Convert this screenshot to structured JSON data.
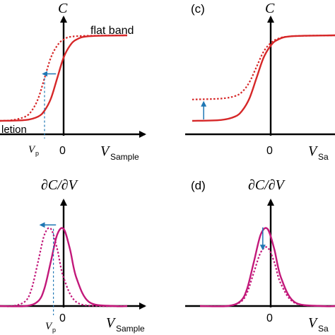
{
  "chart_data": [
    {
      "panel": "a",
      "panel_label": "",
      "type": "line",
      "ylabel": "C",
      "xlabel_symbol": "V",
      "xlabel_sub": "Sample",
      "zero_tick": "0",
      "annotations": {
        "top_right": "flat band",
        "bottom_left": "letion",
        "marker": "V",
        "marker_sub": "p"
      },
      "xlim": [
        -1,
        1
      ],
      "ylim": [
        0,
        1
      ],
      "series": [
        {
          "style": "solid",
          "color": "#d62728",
          "x": [
            -1.0,
            -0.6,
            -0.4,
            -0.3,
            -0.2,
            -0.1,
            0.0,
            0.1,
            0.2,
            0.4,
            1.0
          ],
          "y": [
            0.0,
            0.01,
            0.05,
            0.12,
            0.26,
            0.5,
            0.74,
            0.88,
            0.95,
            0.99,
            1.0
          ]
        },
        {
          "style": "dotted",
          "color": "#d62728",
          "x": [
            -1.0,
            -0.8,
            -0.6,
            -0.5,
            -0.4,
            -0.3,
            -0.2,
            -0.1,
            0.0,
            0.2,
            1.0
          ],
          "y": [
            0.0,
            0.01,
            0.05,
            0.12,
            0.26,
            0.5,
            0.74,
            0.88,
            0.95,
            0.99,
            1.0
          ]
        }
      ],
      "arrow_color": "#1f77b4",
      "marker_line_color": "#1f77b4"
    },
    {
      "panel": "c",
      "panel_label": "(c)",
      "type": "line",
      "ylabel": "C",
      "xlabel_symbol": "V",
      "xlabel_sub": "Sa",
      "zero_tick": "0",
      "xlim": [
        -1,
        1
      ],
      "ylim": [
        0,
        1
      ],
      "series": [
        {
          "style": "solid",
          "color": "#d62728",
          "x": [
            -1.0,
            -0.6,
            -0.4,
            -0.3,
            -0.2,
            -0.1,
            0.0,
            0.1,
            0.2,
            0.4,
            1.0
          ],
          "y": [
            0.0,
            0.01,
            0.05,
            0.12,
            0.26,
            0.5,
            0.74,
            0.88,
            0.95,
            0.99,
            1.0
          ]
        },
        {
          "style": "dotted",
          "color": "#d62728",
          "x": [
            -1.0,
            -0.6,
            -0.4,
            -0.3,
            -0.2,
            -0.1,
            0.0,
            0.1,
            0.2,
            0.4,
            1.0
          ],
          "y": [
            0.25,
            0.26,
            0.29,
            0.34,
            0.45,
            0.63,
            0.81,
            0.91,
            0.96,
            0.99,
            1.0
          ]
        }
      ],
      "arrow_color": "#1f77b4"
    },
    {
      "panel": "b",
      "panel_label": "",
      "type": "line",
      "ylabel": "∂C/∂V",
      "xlabel_symbol": "V",
      "xlabel_sub": "Sample",
      "zero_tick": "0",
      "annotations": {
        "marker": "V",
        "marker_sub": "p"
      },
      "xlim": [
        -1,
        1
      ],
      "ylim": [
        0,
        1
      ],
      "series": [
        {
          "style": "solid",
          "color": "#c2187a",
          "x": [
            -1.0,
            -0.6,
            -0.4,
            -0.3,
            -0.2,
            -0.1,
            0.0,
            0.1,
            0.2,
            0.4,
            0.8,
            1.0
          ],
          "y": [
            0.0,
            0.0,
            0.06,
            0.22,
            0.55,
            0.88,
            0.95,
            0.7,
            0.35,
            0.05,
            0.0,
            0.0
          ]
        },
        {
          "style": "dotted",
          "color": "#c2187a",
          "x": [
            -1.0,
            -0.8,
            -0.6,
            -0.5,
            -0.4,
            -0.3,
            -0.2,
            -0.1,
            0.0,
            0.2,
            0.6,
            1.0
          ],
          "y": [
            0.0,
            0.0,
            0.06,
            0.22,
            0.55,
            0.88,
            0.95,
            0.7,
            0.35,
            0.05,
            0.0,
            0.0
          ]
        }
      ],
      "arrow_color": "#1f77b4",
      "marker_line_color": "#1f77b4"
    },
    {
      "panel": "d",
      "panel_label": "(d)",
      "type": "line",
      "ylabel": "∂C/∂V",
      "xlabel_symbol": "V",
      "xlabel_sub": "Sa",
      "zero_tick": "0",
      "xlim": [
        -1,
        1
      ],
      "ylim": [
        0,
        1
      ],
      "series": [
        {
          "style": "solid",
          "color": "#c2187a",
          "x": [
            -1.0,
            -0.6,
            -0.4,
            -0.3,
            -0.2,
            -0.1,
            0.0,
            0.1,
            0.2,
            0.4,
            0.8,
            1.0
          ],
          "y": [
            0.0,
            0.0,
            0.06,
            0.22,
            0.55,
            0.88,
            0.95,
            0.7,
            0.35,
            0.05,
            0.0,
            0.0
          ]
        },
        {
          "style": "dotted",
          "color": "#c2187a",
          "x": [
            -1.0,
            -0.6,
            -0.4,
            -0.3,
            -0.2,
            -0.1,
            0.0,
            0.1,
            0.2,
            0.4,
            0.8,
            1.0
          ],
          "y": [
            0.0,
            0.0,
            0.05,
            0.17,
            0.42,
            0.66,
            0.72,
            0.54,
            0.27,
            0.04,
            0.0,
            0.0
          ]
        }
      ],
      "arrow_color": "#1f77b4"
    }
  ]
}
